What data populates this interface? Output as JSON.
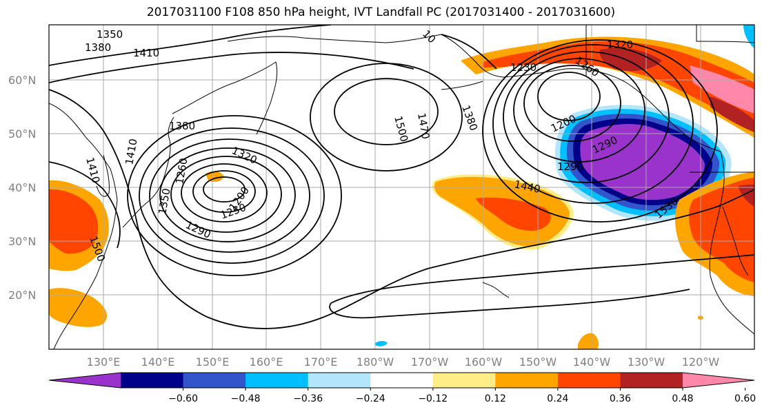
{
  "title": "2017031100 F108 850 hPa height, IVT Landfall PC (2017031400 - 2017031600)",
  "lat_labels": [
    "60°N",
    "50°N",
    "40°N",
    "30°N",
    "20°N"
  ],
  "lon_labels": [
    "130°E",
    "140°E",
    "150°E",
    "160°E",
    "170°E",
    "180°W",
    "170°W",
    "160°W",
    "150°W",
    "140°W",
    "130°W",
    "120°W"
  ],
  "colorbar": {
    "colors": [
      "#9933cc",
      "#00008b",
      "#3355cc",
      "#00bfff",
      "#b3e5fc",
      "#ffffff",
      "#ffee88",
      "#ffa500",
      "#ff4500",
      "#b22222",
      "#ff88aa"
    ],
    "tick_labels": [
      "−0.60",
      "−0.48",
      "−0.36",
      "−0.24",
      "−0.12",
      "0.12",
      "0.24",
      "0.36",
      "0.48",
      "0.60"
    ]
  },
  "contour_labels": [
    "1350",
    "1380",
    "1410",
    "1500",
    "1470",
    "1380",
    "1230",
    "1260",
    "1320",
    "1380",
    "1410",
    "1320",
    "1260",
    "1350",
    "1290",
    "1200",
    "1250",
    "1290",
    "1200",
    "1290",
    "1350",
    "1440",
    "1530",
    "1410",
    "1500",
    "10"
  ]
}
